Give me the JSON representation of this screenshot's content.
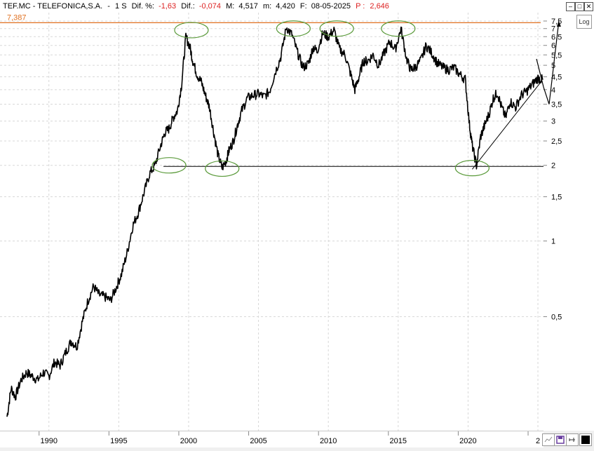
{
  "header": {
    "symbol": "TEF.MC - TELEFONICA,S.A.",
    "dash": "-",
    "timeframe": "1 S",
    "dif_pct_label": "Dif. %:",
    "dif_pct_value": "-1,63",
    "dif_label": "Dif.:",
    "dif_value": "-0,074",
    "max_label": "M:",
    "max_value": "4,517",
    "min_label": "m:",
    "min_value": "4,420",
    "date_label": "F:",
    "date_value": "08-05-2025",
    "price_label": "P :",
    "price_value": "2,646"
  },
  "buttons": {
    "minimize": "–",
    "maximize": "□",
    "close": "✕",
    "log": "Log"
  },
  "chart_data": {
    "type": "line",
    "title": "",
    "xlabel": "",
    "ylabel": "",
    "yscale": "log",
    "grid": true,
    "x_ticks": [
      "1990",
      "1995",
      "2000",
      "2005",
      "2010",
      "2015",
      "2020",
      "2"
    ],
    "y_ticks": [
      "7,5",
      "7",
      "6,5",
      "6",
      "5,5",
      "5",
      "4,5",
      "4",
      "3,5",
      "3",
      "2,5",
      "2",
      "1,5",
      "1",
      "0,5"
    ],
    "xlim": [
      1986.5,
      2025.4
    ],
    "ylim": [
      0.176,
      8.1
    ],
    "resistance_level": {
      "label": "7,387",
      "value": 7.387,
      "color": "#e07020"
    },
    "support_level": {
      "value": 1.98,
      "start_x": 1998.2
    },
    "series": [
      {
        "x": [
          1987.0,
          1987.3,
          1987.6,
          1988.0,
          1988.4,
          1988.8,
          1989.2,
          1989.6,
          1990.0,
          1990.4,
          1990.8,
          1991.2,
          1991.6,
          1992.0,
          1992.4,
          1992.8,
          1993.2,
          1993.6,
          1994.0,
          1994.4,
          1994.8,
          1995.2,
          1995.6,
          1996.0,
          1996.4,
          1996.8,
          1997.2,
          1997.6,
          1998.0,
          1998.3,
          1998.6,
          1998.9,
          1999.2,
          1999.5,
          1999.8,
          2000.1,
          2000.3,
          2000.6,
          2000.9,
          2001.2,
          2001.5,
          2001.8,
          2002.1,
          2002.4,
          2002.7,
          2002.9,
          2003.2,
          2003.5,
          2003.8,
          2004.2,
          2004.6,
          2005.0,
          2005.4,
          2005.8,
          2006.2,
          2006.6,
          2007.0,
          2007.4,
          2007.8,
          2008.2,
          2008.6,
          2008.9,
          2009.2,
          2009.6,
          2010.0,
          2010.4,
          2010.8,
          2011.2,
          2011.6,
          2011.9,
          2012.2,
          2012.5,
          2012.8,
          2013.2,
          2013.6,
          2014.0,
          2014.4,
          2014.8,
          2015.2,
          2015.6,
          2015.9,
          2016.2,
          2016.6,
          2017.0,
          2017.4,
          2017.8,
          2018.2,
          2018.6,
          2019.0,
          2019.4,
          2019.8,
          2020.1,
          2020.3,
          2020.6,
          2020.9,
          2021.2,
          2021.5,
          2021.8,
          2022.1,
          2022.4,
          2022.7,
          2023.0,
          2023.4,
          2023.8,
          2024.2,
          2024.6,
          2025.0,
          2025.35
        ],
        "y": [
          0.2,
          0.26,
          0.24,
          0.28,
          0.3,
          0.29,
          0.28,
          0.3,
          0.29,
          0.33,
          0.32,
          0.36,
          0.4,
          0.38,
          0.48,
          0.58,
          0.66,
          0.61,
          0.6,
          0.58,
          0.65,
          0.74,
          0.9,
          1.15,
          1.3,
          1.55,
          1.85,
          2.0,
          2.4,
          2.7,
          2.8,
          3.1,
          3.3,
          4.2,
          6.5,
          5.9,
          5.2,
          4.6,
          4.3,
          3.8,
          3.4,
          2.7,
          2.2,
          1.95,
          2.1,
          2.3,
          2.5,
          2.9,
          3.3,
          3.7,
          3.8,
          3.85,
          3.75,
          3.95,
          4.7,
          5.4,
          7.1,
          6.6,
          5.6,
          4.9,
          5.1,
          5.9,
          5.7,
          6.7,
          6.5,
          6.9,
          5.8,
          5.5,
          4.6,
          4.0,
          4.5,
          5.2,
          5.2,
          5.5,
          5.0,
          5.6,
          6.2,
          5.8,
          7.0,
          5.3,
          4.8,
          4.9,
          5.2,
          6.0,
          5.6,
          5.1,
          4.9,
          4.8,
          4.9,
          4.6,
          4.4,
          2.9,
          2.4,
          2.0,
          2.6,
          2.9,
          3.2,
          3.7,
          3.9,
          3.4,
          3.1,
          3.6,
          3.4,
          3.8,
          3.95,
          4.2,
          4.45,
          4.38
        ]
      }
    ],
    "annotations": [
      {
        "type": "ellipse",
        "x": 2000.2,
        "y": 6.9
      },
      {
        "type": "ellipse",
        "x": 2007.5,
        "y": 7.0
      },
      {
        "type": "ellipse",
        "x": 2010.6,
        "y": 7.0
      },
      {
        "type": "ellipse",
        "x": 2015.0,
        "y": 7.0
      },
      {
        "type": "ellipse",
        "x": 1998.6,
        "y": 2.0
      },
      {
        "type": "ellipse",
        "x": 2002.4,
        "y": 1.94
      },
      {
        "type": "ellipse",
        "x": 2020.3,
        "y": 1.95
      }
    ],
    "trendline": {
      "from": [
        2020.3,
        1.93
      ],
      "to": [
        2025.3,
        4.35
      ]
    },
    "projection": [
      [
        2024.9,
        5.3
      ],
      [
        2025.4,
        4.1
      ],
      [
        2025.8,
        3.5
      ],
      [
        2026.5,
        7.5
      ]
    ]
  }
}
